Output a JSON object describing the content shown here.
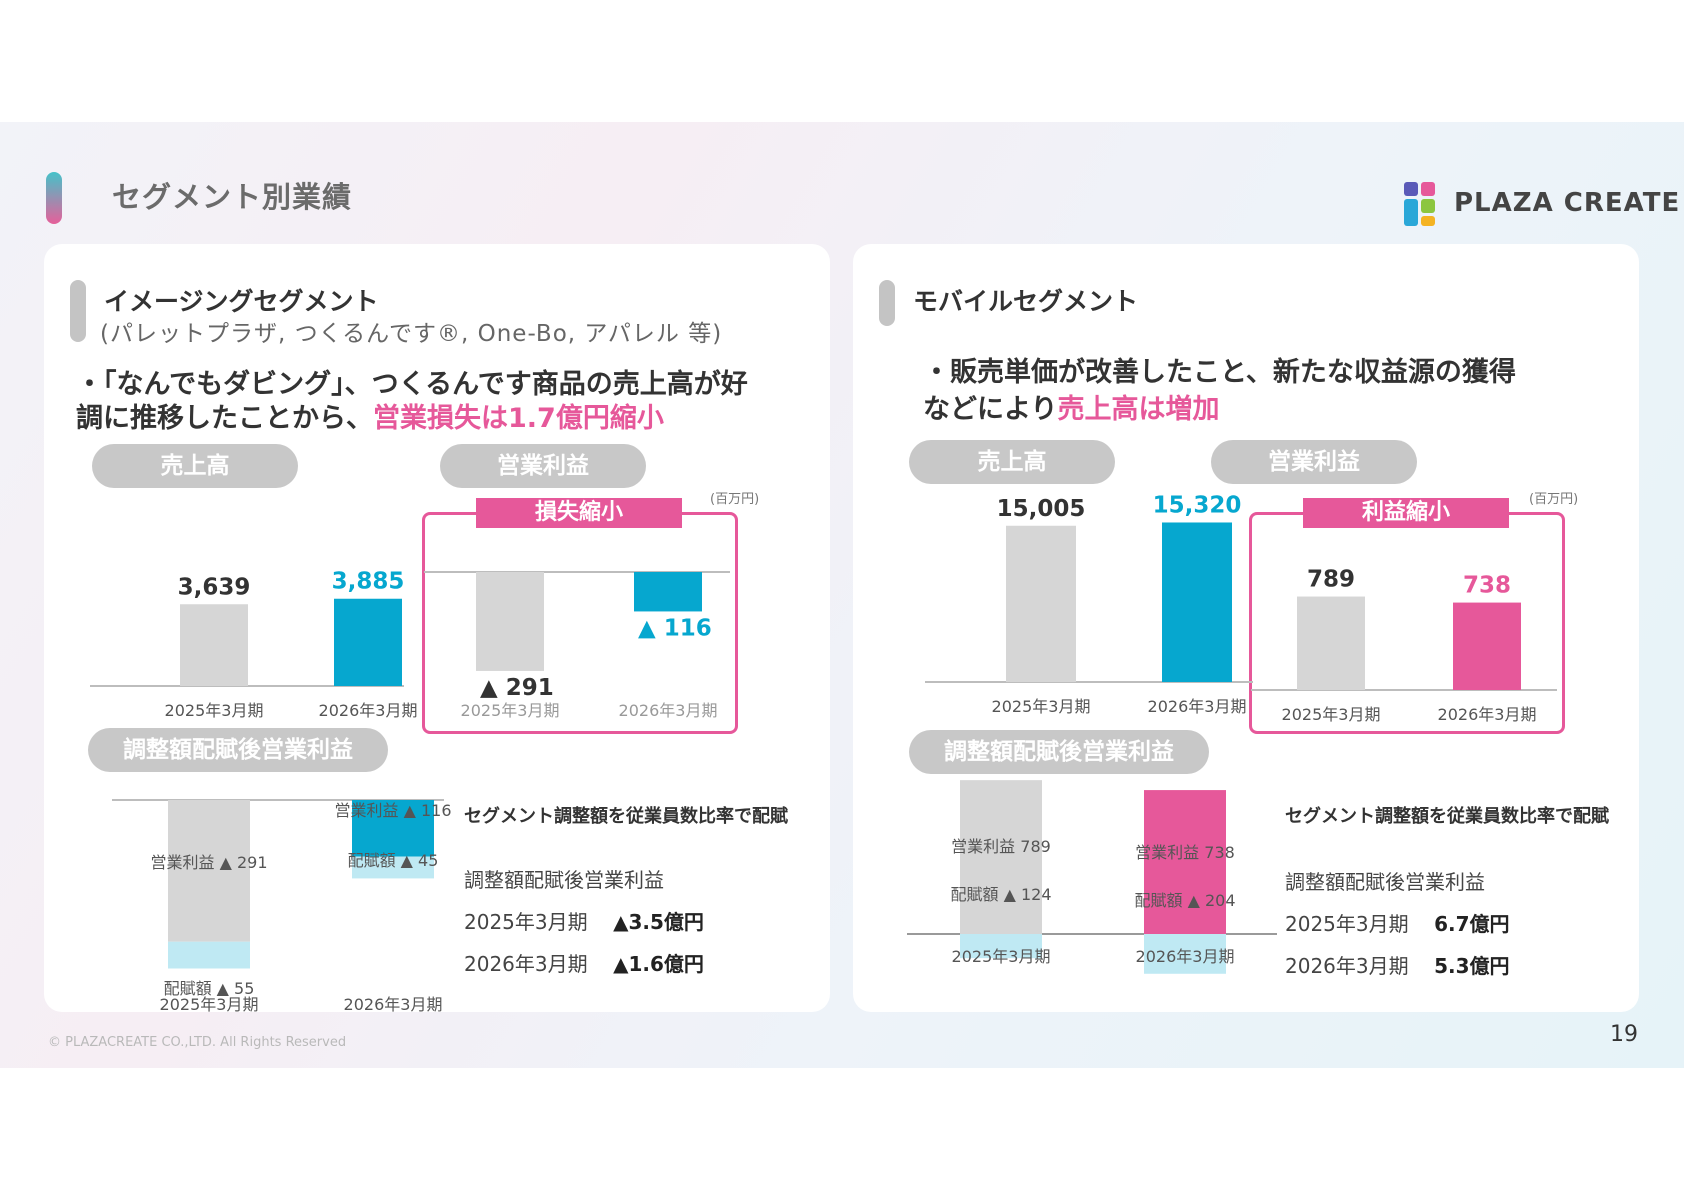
{
  "slide_title": "セグメント別業績",
  "logo_text": "PLAZA CREATE",
  "footer": "© PLAZACREATE CO.,LTD. All Rights Reserved",
  "page_number": "19",
  "colors": {
    "blue": "#06a7cf",
    "pink": "#e6589a",
    "gray": "#d6d6d6",
    "light_blue": "#bfe9f3"
  },
  "imaging": {
    "title": "イメージングセグメント",
    "subtitle": "(パレットプラザ, つくるんです®, One-Bo, アパレル 等)",
    "headline1": "・「なんでもダビング」、つくるんです商品の売上高が好",
    "headline2a": "調に推移したことから、",
    "headline2b": "営業損失は1.7億円縮小",
    "pill_sales": "売上高",
    "pill_op": "営業利益",
    "pill_adj": "調整額配賦後営業利益",
    "unit": "(百万円)",
    "frame_label": "損失縮小",
    "note_title": "セグメント調整額を従業員数比率で配賦",
    "note_heading": "調整額配賦後営業利益",
    "note_row1_period": "2025年3月期",
    "note_row1_value": "▲3.5億円",
    "note_row2_period": "2026年3月期",
    "note_row2_value": "▲1.6億円"
  },
  "mobile": {
    "title": "モバイルセグメント",
    "headline1": "・販売単価が改善したこと、新たな収益源の獲得",
    "headline2a": "などにより",
    "headline2b": "売上高は増加",
    "pill_sales": "売上高",
    "pill_op": "営業利益",
    "pill_adj": "調整額配賦後営業利益",
    "unit": "(百万円)",
    "frame_label": "利益縮小",
    "note_title": "セグメント調整額を従業員数比率で配賦",
    "note_heading": "調整額配賦後営業利益",
    "note_row1_period": "2025年3月期",
    "note_row1_value": "6.7億円",
    "note_row2_period": "2026年3月期",
    "note_row2_value": "5.3億円"
  },
  "chart_data": [
    {
      "id": "imaging-sales",
      "type": "bar",
      "categories": [
        "2025年3月期",
        "2026年3月期"
      ],
      "values": [
        3639,
        3885
      ],
      "labels": [
        "3,639",
        "3,885"
      ]
    },
    {
      "id": "imaging-op",
      "type": "bar",
      "categories": [
        "2025年3月期",
        "2026年3月期"
      ],
      "values": [
        -291,
        -116
      ],
      "labels": [
        "▲ 291",
        "▲ 116"
      ]
    },
    {
      "id": "imaging-adj",
      "type": "bar",
      "stacked": true,
      "categories": [
        "2025年3月期",
        "2026年3月期"
      ],
      "series": [
        {
          "name": "営業利益",
          "values": [
            -291,
            -116
          ],
          "labels": [
            "営業利益 ▲ 291",
            "営業利益 ▲ 116"
          ]
        },
        {
          "name": "配賦額",
          "values": [
            -55,
            -45
          ],
          "labels": [
            "配賦額 ▲ 55",
            "配賦額 ▲ 45"
          ]
        }
      ]
    },
    {
      "id": "mobile-sales",
      "type": "bar",
      "categories": [
        "2025年3月期",
        "2026年3月期"
      ],
      "values": [
        15005,
        15320
      ],
      "labels": [
        "15,005",
        "15,320"
      ]
    },
    {
      "id": "mobile-op",
      "type": "bar",
      "categories": [
        "2025年3月期",
        "2026年3月期"
      ],
      "values": [
        789,
        738
      ],
      "labels": [
        "789",
        "738"
      ]
    },
    {
      "id": "mobile-adj",
      "type": "bar",
      "stacked": true,
      "categories": [
        "2025年3月期",
        "2026年3月期"
      ],
      "series": [
        {
          "name": "営業利益",
          "values": [
            789,
            738
          ],
          "labels": [
            "営業利益 789",
            "営業利益 738"
          ]
        },
        {
          "name": "配賦額",
          "values": [
            -124,
            -204
          ],
          "labels": [
            "配賦額 ▲ 124",
            "配賦額 ▲ 204"
          ]
        }
      ]
    }
  ]
}
